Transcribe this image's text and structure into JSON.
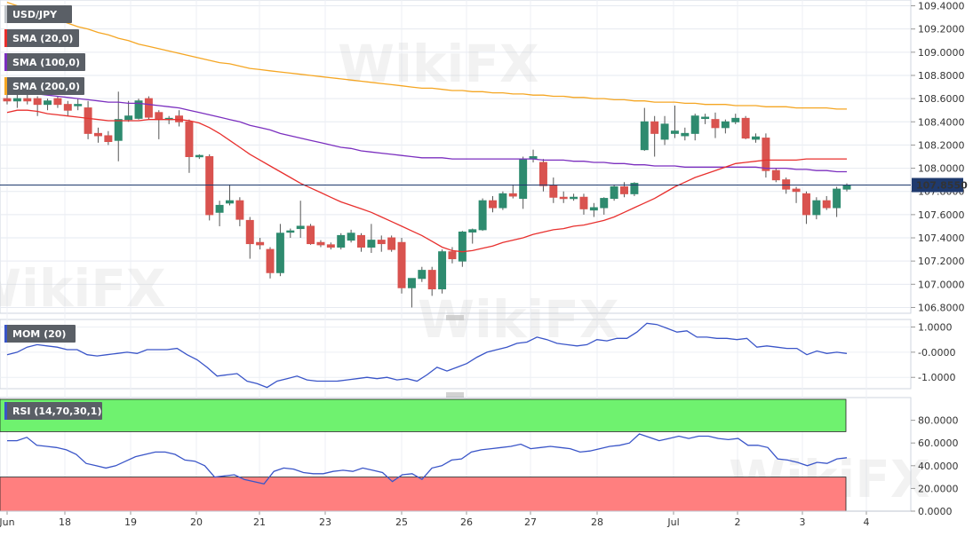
{
  "chart_data": {
    "type": "candlestick",
    "symbol": "USD/JPY",
    "current_price": "107.8550",
    "watermark": "WikiFX",
    "indicators": [
      "SMA (20,0)",
      "SMA (100,0)",
      "SMA (200,0)"
    ],
    "colors": {
      "up": "#2e8b6f",
      "down": "#d9534f",
      "sma20": "#e8302e",
      "sma100": "#7b2fbf",
      "sma200": "#f5a623",
      "mom": "#3a55c8",
      "rsi": "#3a55c8",
      "price_line": "#1f3a6e",
      "overbought": "#6ff26f",
      "oversold": "#ff7f7f"
    },
    "price_axis": [
      "109.4000",
      "109.2000",
      "109.0000",
      "108.8000",
      "108.6000",
      "108.4000",
      "108.2000",
      "108.0000",
      "107.8000",
      "107.6000",
      "107.4000",
      "107.2000",
      "107.0000",
      "106.8000"
    ],
    "ylim": [
      106.75,
      109.45
    ],
    "x_labels": [
      "Jun",
      "18",
      "19",
      "20",
      "21",
      "23",
      "25",
      "26",
      "27",
      "28",
      "Jul",
      "2",
      "3",
      "4"
    ],
    "candles": [
      {
        "o": 108.6,
        "h": 108.65,
        "l": 108.55,
        "c": 108.58
      },
      {
        "o": 108.58,
        "h": 108.65,
        "l": 108.52,
        "c": 108.6
      },
      {
        "o": 108.6,
        "h": 108.65,
        "l": 108.55,
        "c": 108.58
      },
      {
        "o": 108.6,
        "h": 108.62,
        "l": 108.45,
        "c": 108.55
      },
      {
        "o": 108.55,
        "h": 108.6,
        "l": 108.5,
        "c": 108.58
      },
      {
        "o": 108.6,
        "h": 108.62,
        "l": 108.52,
        "c": 108.55
      },
      {
        "o": 108.55,
        "h": 108.58,
        "l": 108.45,
        "c": 108.5
      },
      {
        "o": 108.55,
        "h": 108.6,
        "l": 108.5,
        "c": 108.55
      },
      {
        "o": 108.52,
        "h": 108.58,
        "l": 108.25,
        "c": 108.3
      },
      {
        "o": 108.3,
        "h": 108.35,
        "l": 108.22,
        "c": 108.28
      },
      {
        "o": 108.28,
        "h": 108.32,
        "l": 108.2,
        "c": 108.23
      },
      {
        "o": 108.24,
        "h": 108.66,
        "l": 108.06,
        "c": 108.42
      },
      {
        "o": 108.42,
        "h": 108.58,
        "l": 108.4,
        "c": 108.45
      },
      {
        "o": 108.43,
        "h": 108.6,
        "l": 108.42,
        "c": 108.58
      },
      {
        "o": 108.6,
        "h": 108.62,
        "l": 108.42,
        "c": 108.44
      },
      {
        "o": 108.48,
        "h": 108.5,
        "l": 108.25,
        "c": 108.42
      },
      {
        "o": 108.42,
        "h": 108.45,
        "l": 108.38,
        "c": 108.43
      },
      {
        "o": 108.45,
        "h": 108.5,
        "l": 108.36,
        "c": 108.4
      },
      {
        "o": 108.4,
        "h": 108.42,
        "l": 107.96,
        "c": 108.1
      },
      {
        "o": 108.1,
        "h": 108.12,
        "l": 108.08,
        "c": 108.11
      },
      {
        "o": 108.1,
        "h": 108.12,
        "l": 107.55,
        "c": 107.6
      },
      {
        "o": 107.62,
        "h": 107.72,
        "l": 107.5,
        "c": 107.68
      },
      {
        "o": 107.7,
        "h": 107.86,
        "l": 107.68,
        "c": 107.72
      },
      {
        "o": 107.72,
        "h": 107.75,
        "l": 107.5,
        "c": 107.56
      },
      {
        "o": 107.55,
        "h": 107.58,
        "l": 107.22,
        "c": 107.35
      },
      {
        "o": 107.36,
        "h": 107.4,
        "l": 107.3,
        "c": 107.34
      },
      {
        "o": 107.3,
        "h": 107.32,
        "l": 107.05,
        "c": 107.1
      },
      {
        "o": 107.1,
        "h": 107.52,
        "l": 107.07,
        "c": 107.44
      },
      {
        "o": 107.45,
        "h": 107.48,
        "l": 107.4,
        "c": 107.46
      },
      {
        "o": 107.48,
        "h": 107.72,
        "l": 107.4,
        "c": 107.5
      },
      {
        "o": 107.5,
        "h": 107.52,
        "l": 107.34,
        "c": 107.35
      },
      {
        "o": 107.36,
        "h": 107.38,
        "l": 107.32,
        "c": 107.34
      },
      {
        "o": 107.34,
        "h": 107.36,
        "l": 107.3,
        "c": 107.32
      },
      {
        "o": 107.32,
        "h": 107.44,
        "l": 107.3,
        "c": 107.42
      },
      {
        "o": 107.38,
        "h": 107.47,
        "l": 107.36,
        "c": 107.44
      },
      {
        "o": 107.42,
        "h": 107.44,
        "l": 107.28,
        "c": 107.32
      },
      {
        "o": 107.32,
        "h": 107.52,
        "l": 107.27,
        "c": 107.38
      },
      {
        "o": 107.38,
        "h": 107.42,
        "l": 107.28,
        "c": 107.35
      },
      {
        "o": 107.4,
        "h": 107.42,
        "l": 107.28,
        "c": 107.3
      },
      {
        "o": 107.36,
        "h": 107.4,
        "l": 106.92,
        "c": 106.97
      },
      {
        "o": 106.97,
        "h": 107.05,
        "l": 106.8,
        "c": 107.05
      },
      {
        "o": 107.05,
        "h": 107.15,
        "l": 107.02,
        "c": 107.12
      },
      {
        "o": 107.12,
        "h": 107.15,
        "l": 106.9,
        "c": 106.96
      },
      {
        "o": 106.96,
        "h": 107.3,
        "l": 106.92,
        "c": 107.28
      },
      {
        "o": 107.28,
        "h": 107.32,
        "l": 107.18,
        "c": 107.22
      },
      {
        "o": 107.2,
        "h": 107.46,
        "l": 107.15,
        "c": 107.45
      },
      {
        "o": 107.45,
        "h": 107.48,
        "l": 107.35,
        "c": 107.47
      },
      {
        "o": 107.47,
        "h": 107.74,
        "l": 107.46,
        "c": 107.72
      },
      {
        "o": 107.72,
        "h": 107.76,
        "l": 107.62,
        "c": 107.66
      },
      {
        "o": 107.66,
        "h": 107.8,
        "l": 107.64,
        "c": 107.78
      },
      {
        "o": 107.78,
        "h": 107.86,
        "l": 107.74,
        "c": 107.76
      },
      {
        "o": 107.74,
        "h": 108.1,
        "l": 107.65,
        "c": 108.08
      },
      {
        "o": 108.08,
        "h": 108.16,
        "l": 108.05,
        "c": 108.1
      },
      {
        "o": 108.05,
        "h": 108.08,
        "l": 107.8,
        "c": 107.85
      },
      {
        "o": 107.85,
        "h": 107.92,
        "l": 107.7,
        "c": 107.75
      },
      {
        "o": 107.75,
        "h": 107.8,
        "l": 107.7,
        "c": 107.74
      },
      {
        "o": 107.74,
        "h": 107.78,
        "l": 107.72,
        "c": 107.75
      },
      {
        "o": 107.75,
        "h": 107.78,
        "l": 107.6,
        "c": 107.65
      },
      {
        "o": 107.64,
        "h": 107.7,
        "l": 107.58,
        "c": 107.66
      },
      {
        "o": 107.66,
        "h": 107.75,
        "l": 107.6,
        "c": 107.74
      },
      {
        "o": 107.74,
        "h": 107.86,
        "l": 107.72,
        "c": 107.84
      },
      {
        "o": 107.84,
        "h": 107.88,
        "l": 107.75,
        "c": 107.78
      },
      {
        "o": 107.78,
        "h": 107.88,
        "l": 107.76,
        "c": 107.87
      },
      {
        "o": 108.16,
        "h": 108.52,
        "l": 108.15,
        "c": 108.4
      },
      {
        "o": 108.4,
        "h": 108.45,
        "l": 108.1,
        "c": 108.3
      },
      {
        "o": 108.25,
        "h": 108.45,
        "l": 108.2,
        "c": 108.38
      },
      {
        "o": 108.3,
        "h": 108.54,
        "l": 108.26,
        "c": 108.32
      },
      {
        "o": 108.28,
        "h": 108.35,
        "l": 108.24,
        "c": 108.3
      },
      {
        "o": 108.3,
        "h": 108.47,
        "l": 108.24,
        "c": 108.45
      },
      {
        "o": 108.43,
        "h": 108.47,
        "l": 108.38,
        "c": 108.44
      },
      {
        "o": 108.42,
        "h": 108.48,
        "l": 108.26,
        "c": 108.35
      },
      {
        "o": 108.35,
        "h": 108.42,
        "l": 108.3,
        "c": 108.4
      },
      {
        "o": 108.4,
        "h": 108.47,
        "l": 108.38,
        "c": 108.43
      },
      {
        "o": 108.43,
        "h": 108.45,
        "l": 108.25,
        "c": 108.26
      },
      {
        "o": 108.25,
        "h": 108.3,
        "l": 108.22,
        "c": 108.27
      },
      {
        "o": 108.26,
        "h": 108.3,
        "l": 107.92,
        "c": 107.98
      },
      {
        "o": 107.98,
        "h": 108.0,
        "l": 107.88,
        "c": 107.9
      },
      {
        "o": 107.9,
        "h": 107.92,
        "l": 107.78,
        "c": 107.82
      },
      {
        "o": 107.82,
        "h": 107.84,
        "l": 107.7,
        "c": 107.8
      },
      {
        "o": 107.78,
        "h": 107.8,
        "l": 107.52,
        "c": 107.6
      },
      {
        "o": 107.6,
        "h": 107.75,
        "l": 107.56,
        "c": 107.72
      },
      {
        "o": 107.72,
        "h": 107.76,
        "l": 107.64,
        "c": 107.66
      },
      {
        "o": 107.66,
        "h": 107.84,
        "l": 107.58,
        "c": 107.82
      },
      {
        "o": 107.82,
        "h": 107.87,
        "l": 107.8,
        "c": 107.85
      }
    ],
    "sma20": [
      108.48,
      108.5,
      108.5,
      108.49,
      108.47,
      108.46,
      108.45,
      108.44,
      108.43,
      108.42,
      108.41,
      108.41,
      108.41,
      108.41,
      108.42,
      108.42,
      108.42,
      108.42,
      108.41,
      108.39,
      108.35,
      108.3,
      108.24,
      108.18,
      108.12,
      108.07,
      108.02,
      107.97,
      107.92,
      107.87,
      107.83,
      107.79,
      107.75,
      107.71,
      107.68,
      107.65,
      107.62,
      107.58,
      107.54,
      107.5,
      107.46,
      107.42,
      107.37,
      107.32,
      107.29,
      107.28,
      107.29,
      107.31,
      107.33,
      107.36,
      107.38,
      107.4,
      107.43,
      107.45,
      107.47,
      107.48,
      107.5,
      107.51,
      107.53,
      107.55,
      107.58,
      107.62,
      107.66,
      107.7,
      107.74,
      107.79,
      107.84,
      107.88,
      107.92,
      107.95,
      107.98,
      108.01,
      108.04,
      108.05,
      108.06,
      108.07,
      108.07,
      108.07,
      108.07,
      108.08,
      108.08,
      108.08,
      108.08,
      108.08
    ],
    "sma100": [
      108.66,
      108.65,
      108.65,
      108.64,
      108.63,
      108.62,
      108.61,
      108.6,
      108.59,
      108.58,
      108.57,
      108.57,
      108.56,
      108.56,
      108.55,
      108.54,
      108.53,
      108.52,
      108.5,
      108.48,
      108.46,
      108.44,
      108.42,
      108.4,
      108.37,
      108.35,
      108.33,
      108.3,
      108.28,
      108.26,
      108.24,
      108.22,
      108.2,
      108.18,
      108.17,
      108.15,
      108.14,
      108.13,
      108.12,
      108.11,
      108.1,
      108.09,
      108.09,
      108.09,
      108.08,
      108.08,
      108.08,
      108.08,
      108.08,
      108.08,
      108.08,
      108.08,
      108.08,
      108.07,
      108.07,
      108.07,
      108.06,
      108.06,
      108.05,
      108.05,
      108.04,
      108.04,
      108.03,
      108.03,
      108.02,
      108.02,
      108.02,
      108.01,
      108.01,
      108.01,
      108.01,
      108.01,
      108.01,
      108.01,
      108.01,
      108.0,
      108.0,
      108.0,
      107.99,
      107.99,
      107.98,
      107.98,
      107.97,
      107.97
    ],
    "sma200": [
      109.43,
      109.4,
      109.37,
      109.34,
      109.31,
      109.28,
      109.25,
      109.22,
      109.2,
      109.17,
      109.15,
      109.12,
      109.1,
      109.07,
      109.05,
      109.03,
      109.01,
      108.99,
      108.97,
      108.95,
      108.93,
      108.91,
      108.9,
      108.88,
      108.86,
      108.85,
      108.84,
      108.83,
      108.82,
      108.81,
      108.8,
      108.79,
      108.78,
      108.77,
      108.76,
      108.75,
      108.74,
      108.73,
      108.72,
      108.71,
      108.7,
      108.69,
      108.69,
      108.68,
      108.67,
      108.67,
      108.66,
      108.66,
      108.65,
      108.65,
      108.64,
      108.64,
      108.63,
      108.63,
      108.62,
      108.62,
      108.61,
      108.61,
      108.6,
      108.6,
      108.59,
      108.59,
      108.58,
      108.58,
      108.57,
      108.57,
      108.57,
      108.56,
      108.56,
      108.55,
      108.55,
      108.55,
      108.54,
      108.54,
      108.54,
      108.53,
      108.53,
      108.53,
      108.52,
      108.52,
      108.52,
      108.52,
      108.51,
      108.51
    ],
    "mom": {
      "label": "MOM (20)",
      "axis": [
        "1.0000",
        "-0.0000",
        "-1.0000"
      ],
      "ylim": [
        -1.45,
        1.3
      ],
      "values": [
        -0.1,
        0.0,
        0.2,
        0.3,
        0.25,
        0.2,
        0.1,
        0.1,
        -0.1,
        -0.15,
        -0.1,
        -0.05,
        0.0,
        -0.05,
        0.1,
        0.1,
        0.1,
        0.15,
        -0.1,
        -0.3,
        -0.6,
        -0.95,
        -0.9,
        -0.85,
        -1.15,
        -1.25,
        -1.4,
        -1.15,
        -1.05,
        -0.95,
        -1.1,
        -1.15,
        -1.15,
        -1.15,
        -1.1,
        -1.05,
        -1.0,
        -1.05,
        -1.0,
        -1.1,
        -1.05,
        -1.15,
        -0.9,
        -0.6,
        -0.75,
        -0.6,
        -0.45,
        -0.2,
        0.0,
        0.1,
        0.2,
        0.35,
        0.4,
        0.6,
        0.5,
        0.35,
        0.3,
        0.25,
        0.3,
        0.5,
        0.45,
        0.55,
        0.55,
        0.8,
        1.15,
        1.1,
        0.95,
        0.8,
        0.85,
        0.6,
        0.6,
        0.55,
        0.55,
        0.5,
        0.55,
        0.2,
        0.25,
        0.2,
        0.15,
        0.15,
        -0.1,
        0.05,
        -0.05,
        0.0,
        -0.05
      ],
      "color": "#3a55c8"
    },
    "rsi": {
      "label": "RSI (14,70,30,1)",
      "axis": [
        "80.0000",
        "60.0000",
        "40.0000",
        "20.0000",
        "0.0000"
      ],
      "ylim": [
        0,
        100
      ],
      "levels": [
        70,
        30
      ],
      "values": [
        62,
        62,
        65,
        58,
        57,
        56,
        54,
        50,
        42,
        40,
        38,
        40,
        44,
        48,
        50,
        52,
        52,
        50,
        45,
        44,
        40,
        30,
        31,
        32,
        28,
        26,
        24,
        35,
        38,
        37,
        34,
        33,
        33,
        35,
        36,
        35,
        38,
        36,
        34,
        26,
        32,
        33,
        28,
        38,
        40,
        45,
        46,
        52,
        54,
        55,
        56,
        57,
        59,
        55,
        56,
        57,
        56,
        55,
        52,
        53,
        55,
        57,
        58,
        60,
        68,
        65,
        62,
        64,
        66,
        64,
        66,
        66,
        64,
        63,
        64,
        58,
        58,
        56,
        46,
        45,
        43,
        40,
        43,
        42,
        46,
        47
      ],
      "color": "#3a55c8"
    }
  }
}
